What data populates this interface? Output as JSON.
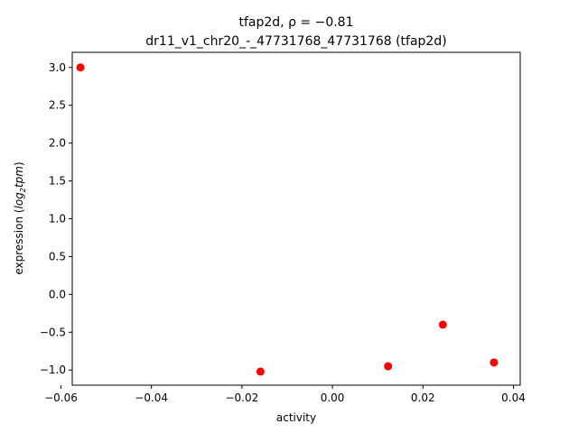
{
  "chart_data": {
    "type": "scatter",
    "title": "tfap2d, ρ = −0.81",
    "subtitle": "dr11_v1_chr20_-_47731768_47731768 (tfap2d)",
    "xlabel": "activity",
    "ylabel_prefix": "expression (",
    "ylabel_math": "log",
    "ylabel_sub": "2",
    "ylabel_math2": "tpm",
    "ylabel_suffix": ")",
    "xlim": [
      -0.0575,
      0.0415
    ],
    "ylim": [
      -1.2,
      3.2
    ],
    "grid": false,
    "marker_color": "#ff0000",
    "x_ticks": [
      {
        "value": -0.06,
        "label": "−0.06"
      },
      {
        "value": -0.04,
        "label": "−0.04"
      },
      {
        "value": -0.02,
        "label": "−0.02"
      },
      {
        "value": 0.0,
        "label": "0.00"
      },
      {
        "value": 0.02,
        "label": "0.02"
      },
      {
        "value": 0.04,
        "label": "0.04"
      }
    ],
    "y_ticks": [
      {
        "value": 3.0,
        "label": "3.0"
      },
      {
        "value": 2.5,
        "label": "2.5"
      },
      {
        "value": 2.0,
        "label": "2.0"
      },
      {
        "value": 1.5,
        "label": "1.5"
      },
      {
        "value": 1.0,
        "label": "1.0"
      },
      {
        "value": 0.5,
        "label": "0.5"
      },
      {
        "value": 0.0,
        "label": "0.0"
      },
      {
        "value": -0.5,
        "label": "−0.5"
      },
      {
        "value": -1.0,
        "label": "−1.0"
      }
    ],
    "points": [
      {
        "x": -0.0557,
        "y": 3.0
      },
      {
        "x": -0.0159,
        "y": -1.02
      },
      {
        "x": 0.0123,
        "y": -0.95
      },
      {
        "x": 0.0244,
        "y": -0.4
      },
      {
        "x": 0.0357,
        "y": -0.9
      }
    ]
  }
}
